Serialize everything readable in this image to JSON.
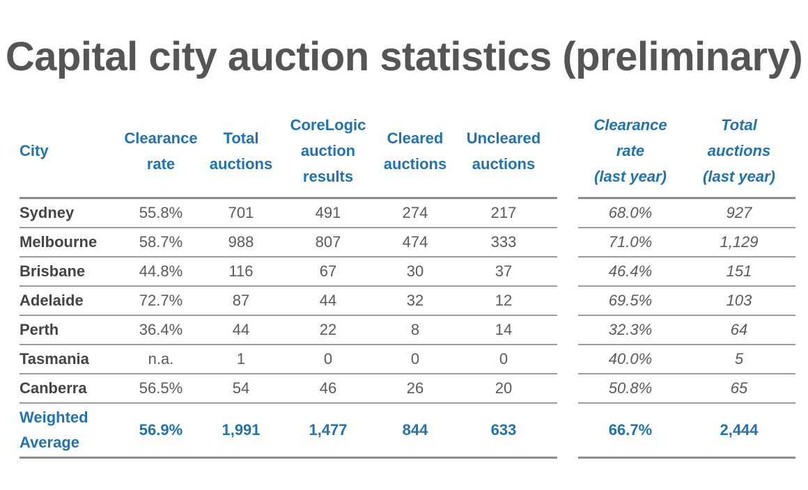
{
  "title": "Capital city auction statistics (preliminary)",
  "headers": {
    "city": "City",
    "clearance_rate": [
      "Clearance",
      "rate"
    ],
    "total_auctions": [
      "Total",
      "auctions"
    ],
    "corelogic": [
      "CoreLogic",
      "auction",
      "results"
    ],
    "cleared": [
      "Cleared",
      "auctions"
    ],
    "uncleared": [
      "Uncleared",
      "auctions"
    ],
    "clearance_rate_ly": [
      "Clearance",
      "rate",
      "(last year)"
    ],
    "total_auctions_ly": [
      "Total",
      "auctions",
      "(last year)"
    ]
  },
  "rows": [
    {
      "city": "Sydney",
      "clearance_rate": "55.8%",
      "total_auctions": "701",
      "corelogic": "491",
      "cleared": "274",
      "uncleared": "217",
      "clearance_rate_ly": "68.0%",
      "total_auctions_ly": "927"
    },
    {
      "city": "Melbourne",
      "clearance_rate": "58.7%",
      "total_auctions": "988",
      "corelogic": "807",
      "cleared": "474",
      "uncleared": "333",
      "clearance_rate_ly": "71.0%",
      "total_auctions_ly": "1,129"
    },
    {
      "city": "Brisbane",
      "clearance_rate": "44.8%",
      "total_auctions": "116",
      "corelogic": "67",
      "cleared": "30",
      "uncleared": "37",
      "clearance_rate_ly": "46.4%",
      "total_auctions_ly": "151"
    },
    {
      "city": "Adelaide",
      "clearance_rate": "72.7%",
      "total_auctions": "87",
      "corelogic": "44",
      "cleared": "32",
      "uncleared": "12",
      "clearance_rate_ly": "69.5%",
      "total_auctions_ly": "103"
    },
    {
      "city": "Perth",
      "clearance_rate": "36.4%",
      "total_auctions": "44",
      "corelogic": "22",
      "cleared": "8",
      "uncleared": "14",
      "clearance_rate_ly": "32.3%",
      "total_auctions_ly": "64"
    },
    {
      "city": "Tasmania",
      "clearance_rate": "n.a.",
      "total_auctions": "1",
      "corelogic": "0",
      "cleared": "0",
      "uncleared": "0",
      "clearance_rate_ly": "40.0%",
      "total_auctions_ly": "5"
    },
    {
      "city": "Canberra",
      "clearance_rate": "56.5%",
      "total_auctions": "54",
      "corelogic": "46",
      "cleared": "26",
      "uncleared": "20",
      "clearance_rate_ly": "50.8%",
      "total_auctions_ly": "65"
    }
  ],
  "weighted_average": {
    "label": [
      "Weighted",
      "Average"
    ],
    "clearance_rate": "56.9%",
    "total_auctions": "1,991",
    "corelogic": "1,477",
    "cleared": "844",
    "uncleared": "633",
    "clearance_rate_ly": "66.7%",
    "total_auctions_ly": "2,444"
  },
  "colors": {
    "header_blue": "#1f73b0",
    "title_gray": "#555555"
  }
}
